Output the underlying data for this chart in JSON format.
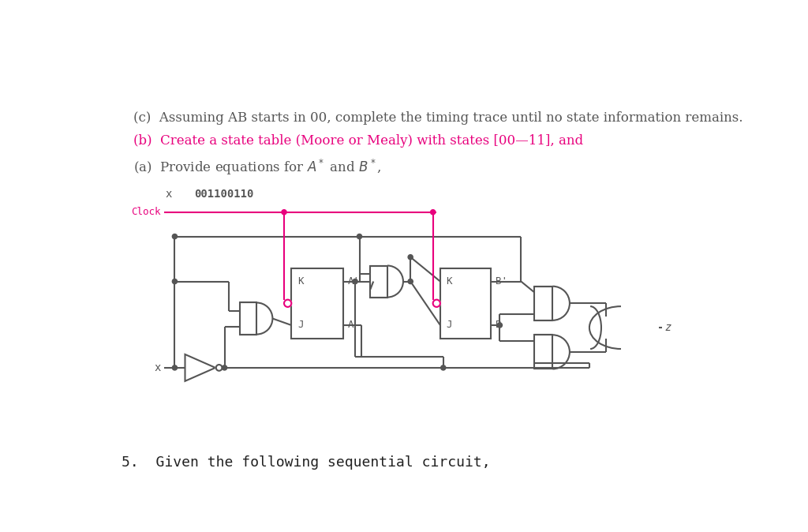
{
  "title": "5.  Given the following sequential circuit,",
  "bg_color": "#ffffff",
  "circuit_color": "#555555",
  "clock_color": "#e8007d",
  "question_a": "(a)  Provide equations for $A^*$ and $B^*$,",
  "question_b": "(b)  Create a state table (Moore or Mealy) with states [00—11], and",
  "question_c": "(c)  Assuming AB starts in 00, complete the timing trace until no state information remains.",
  "x_label": "x",
  "x_sequence": "001100110"
}
